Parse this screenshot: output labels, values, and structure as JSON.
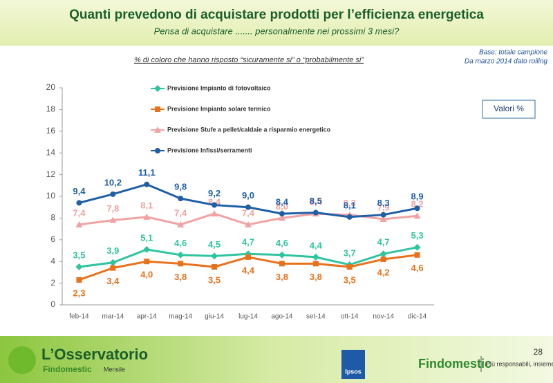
{
  "header": {
    "title": "Quanti prevedono di acquistare prodotti per l’efficienza energetica",
    "subtitle": "Pensa di acquistare ....... personalmente nei prossimi 3 mesi?"
  },
  "note": {
    "base": "Base: totale campione",
    "rolling": "Da marzo 2014 dato rolling",
    "units": "Valori %"
  },
  "chart_data": {
    "type": "line",
    "title": "% di coloro che hanno risposto “sicuramente si” o “probabilmente si”",
    "categories": [
      "feb-14",
      "mar-14",
      "apr-14",
      "mag-14",
      "giu-14",
      "lug-14",
      "ago-14",
      "set-14",
      "ott-14",
      "nov-14",
      "dic-14"
    ],
    "ylim": [
      0,
      20
    ],
    "yticks": [
      0,
      2,
      4,
      6,
      8,
      10,
      12,
      14,
      16,
      18,
      20
    ],
    "grid": false,
    "series": [
      {
        "name": "Previsione Impianto di fotovoltaico",
        "color": "#2fc4a0",
        "marker": "diamond",
        "values": [
          3.5,
          3.9,
          5.1,
          4.6,
          4.5,
          4.7,
          4.6,
          4.4,
          3.7,
          4.7,
          5.3
        ],
        "value_labels": [
          "3,5",
          "3,9",
          "5,1",
          "4,6",
          "4,5",
          "4,7",
          "4,6",
          "4,4",
          "3,7",
          "4,7",
          "5,3"
        ]
      },
      {
        "name": "Previsione Impianto solare termico",
        "color": "#e8711c",
        "marker": "square",
        "values": [
          2.3,
          3.4,
          4.0,
          3.8,
          3.5,
          4.4,
          3.8,
          3.8,
          3.5,
          4.2,
          4.6
        ],
        "value_labels": [
          "2,3",
          "3,4",
          "4,0",
          "3,8",
          "3,5",
          "4,4",
          "3,8",
          "3,8",
          "3,5",
          "4,2",
          "4,6"
        ]
      },
      {
        "name": "Previsione Stufe a pellet/caldaie a risparmio energetico",
        "color": "#f2a2a2",
        "marker": "triangle",
        "values": [
          7.4,
          7.8,
          8.1,
          7.4,
          8.4,
          7.4,
          8.0,
          8.4,
          8.3,
          7.9,
          8.2
        ],
        "value_labels": [
          "7,4",
          "7,8",
          "8,1",
          "7,4",
          "8,4",
          "7,4",
          "8,0",
          "8,4",
          "8,3",
          "7,9",
          "8,2"
        ]
      },
      {
        "name": "Previsione Infissi/serramenti",
        "color": "#1f5fa6",
        "marker": "circle",
        "values": [
          9.4,
          10.2,
          11.1,
          9.8,
          9.2,
          9.0,
          8.4,
          8.5,
          8.1,
          8.3,
          8.9
        ],
        "value_labels": [
          "9,4",
          "10,2",
          "11,1",
          "9,8",
          "9,2",
          "9,0",
          "8,4",
          "8,5",
          "8,1",
          "8,3",
          "8,9"
        ]
      }
    ]
  },
  "footer": {
    "brand": "L’Osservatorio",
    "brand_sub": "Findomestic",
    "frequency": "Mensile",
    "ipsos": "Ipsos",
    "findomestic": "Findomestic",
    "claim": "Più responsabili, insieme",
    "page": "28"
  }
}
